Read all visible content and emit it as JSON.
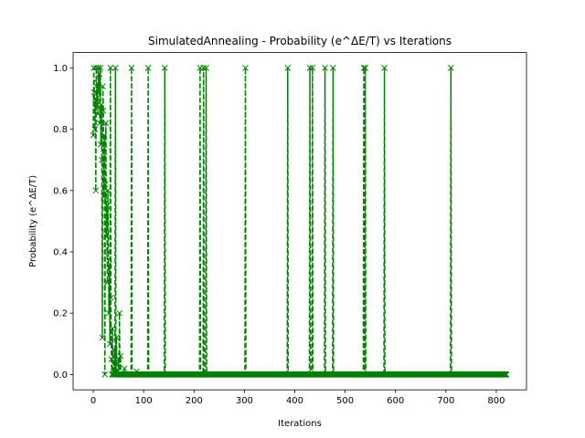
{
  "chart_data": {
    "type": "line",
    "title": "SimulatedAnnealing - Probability (e^ΔE/T) vs Iterations",
    "xlabel": "Iterations",
    "ylabel": "Probability (e^ΔE/T)",
    "xlim": [
      -40,
      860
    ],
    "ylim": [
      -0.05,
      1.05
    ],
    "xticks": [
      0,
      100,
      200,
      300,
      400,
      500,
      600,
      700,
      800
    ],
    "yticks": [
      0.0,
      0.2,
      0.4,
      0.6,
      0.8,
      1.0
    ],
    "xtick_labels": [
      "0",
      "100",
      "200",
      "300",
      "400",
      "500",
      "600",
      "700",
      "800"
    ],
    "ytick_labels": [
      "0.0",
      "0.2",
      "0.4",
      "0.6",
      "0.8",
      "1.0"
    ],
    "grid": false,
    "series": [
      {
        "color": "#008000",
        "line_style": "dashed",
        "marker": "x",
        "x_max": 820,
        "baseline": 0.0,
        "spikes": [
          {
            "x": 0,
            "y": 0.78
          },
          {
            "x": 1,
            "y": 1.0
          },
          {
            "x": 2,
            "y": 0.92
          },
          {
            "x": 3,
            "y": 0.8
          },
          {
            "x": 4,
            "y": 0.9
          },
          {
            "x": 5,
            "y": 0.6
          },
          {
            "x": 6,
            "y": 1.0
          },
          {
            "x": 7,
            "y": 0.88
          },
          {
            "x": 8,
            "y": 0.95
          },
          {
            "x": 9,
            "y": 0.85
          },
          {
            "x": 10,
            "y": 1.0
          },
          {
            "x": 11,
            "y": 0.92
          },
          {
            "x": 12,
            "y": 0.98
          },
          {
            "x": 13,
            "y": 0.82
          },
          {
            "x": 14,
            "y": 1.0
          },
          {
            "x": 15,
            "y": 0.75
          },
          {
            "x": 16,
            "y": 0.88
          },
          {
            "x": 17,
            "y": 0.7
          },
          {
            "x": 18,
            "y": 0.12
          },
          {
            "x": 19,
            "y": 0.94
          },
          {
            "x": 20,
            "y": 0.86
          },
          {
            "x": 21,
            "y": 0.58
          },
          {
            "x": 22,
            "y": 0.78
          },
          {
            "x": 23,
            "y": 0.0
          },
          {
            "x": 24,
            "y": 0.62
          },
          {
            "x": 25,
            "y": 0.82
          },
          {
            "x": 26,
            "y": 0.45
          },
          {
            "x": 27,
            "y": 0.55
          },
          {
            "x": 28,
            "y": 0.3
          },
          {
            "x": 29,
            "y": 0.6
          },
          {
            "x": 30,
            "y": 0.4
          },
          {
            "x": 31,
            "y": 0.2
          },
          {
            "x": 32,
            "y": 0.36
          },
          {
            "x": 33,
            "y": 0.1
          },
          {
            "x": 34,
            "y": 1.0
          },
          {
            "x": 35,
            "y": 0.25
          },
          {
            "x": 36,
            "y": 0.05
          },
          {
            "x": 38,
            "y": 0.15
          },
          {
            "x": 40,
            "y": 0.02
          },
          {
            "x": 42,
            "y": 0.08
          },
          {
            "x": 44,
            "y": 1.0
          },
          {
            "x": 46,
            "y": 0.12
          },
          {
            "x": 48,
            "y": 0.0
          },
          {
            "x": 50,
            "y": 0.05
          },
          {
            "x": 52,
            "y": 0.2
          },
          {
            "x": 54,
            "y": 0.06
          },
          {
            "x": 56,
            "y": 0.0
          },
          {
            "x": 62,
            "y": 0.02
          },
          {
            "x": 76,
            "y": 1.0
          },
          {
            "x": 86,
            "y": 0.01
          },
          {
            "x": 109,
            "y": 1.0
          },
          {
            "x": 142,
            "y": 1.0
          },
          {
            "x": 212,
            "y": 1.0
          },
          {
            "x": 219,
            "y": 1.0
          },
          {
            "x": 224,
            "y": 1.0
          },
          {
            "x": 302,
            "y": 1.0
          },
          {
            "x": 386,
            "y": 1.0
          },
          {
            "x": 430,
            "y": 1.0
          },
          {
            "x": 435,
            "y": 1.0
          },
          {
            "x": 460,
            "y": 1.0
          },
          {
            "x": 476,
            "y": 1.0
          },
          {
            "x": 537,
            "y": 1.0
          },
          {
            "x": 540,
            "y": 1.0
          },
          {
            "x": 578,
            "y": 1.0
          },
          {
            "x": 710,
            "y": 1.0
          }
        ]
      }
    ]
  }
}
